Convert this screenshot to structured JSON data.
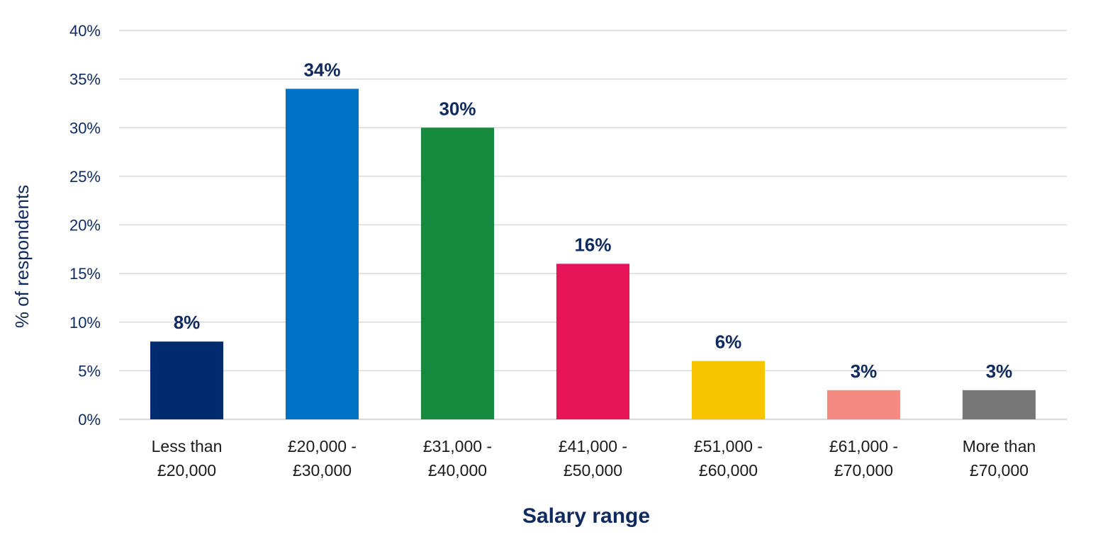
{
  "chart_data": {
    "type": "bar",
    "title": "",
    "xlabel": "Salary range",
    "ylabel": "% of respondents",
    "categories": [
      [
        "Less than",
        "£20,000"
      ],
      [
        "£20,000 -",
        "£30,000"
      ],
      [
        "£31,000 -",
        "£40,000"
      ],
      [
        "£41,000 -",
        "£50,000"
      ],
      [
        "£51,000 -",
        "£60,000"
      ],
      [
        "£61,000 -",
        "£70,000"
      ],
      [
        "More than",
        "£70,000"
      ]
    ],
    "values": [
      8,
      34,
      30,
      16,
      6,
      3,
      3
    ],
    "data_labels": [
      "8%",
      "34%",
      "30%",
      "16%",
      "6%",
      "3%",
      "3%"
    ],
    "bar_colors": [
      "#002b6f",
      "#0072c6",
      "#138a3e",
      "#e8145a",
      "#f8c400",
      "#f48a82",
      "#777777"
    ],
    "ylim": [
      0,
      40
    ],
    "yticks": [
      0,
      5,
      10,
      15,
      20,
      25,
      30,
      35,
      40
    ],
    "ytick_labels": [
      "0%",
      "5%",
      "10%",
      "15%",
      "20%",
      "25%",
      "30%",
      "35%",
      "40%"
    ],
    "grid": true,
    "legend": "none"
  }
}
